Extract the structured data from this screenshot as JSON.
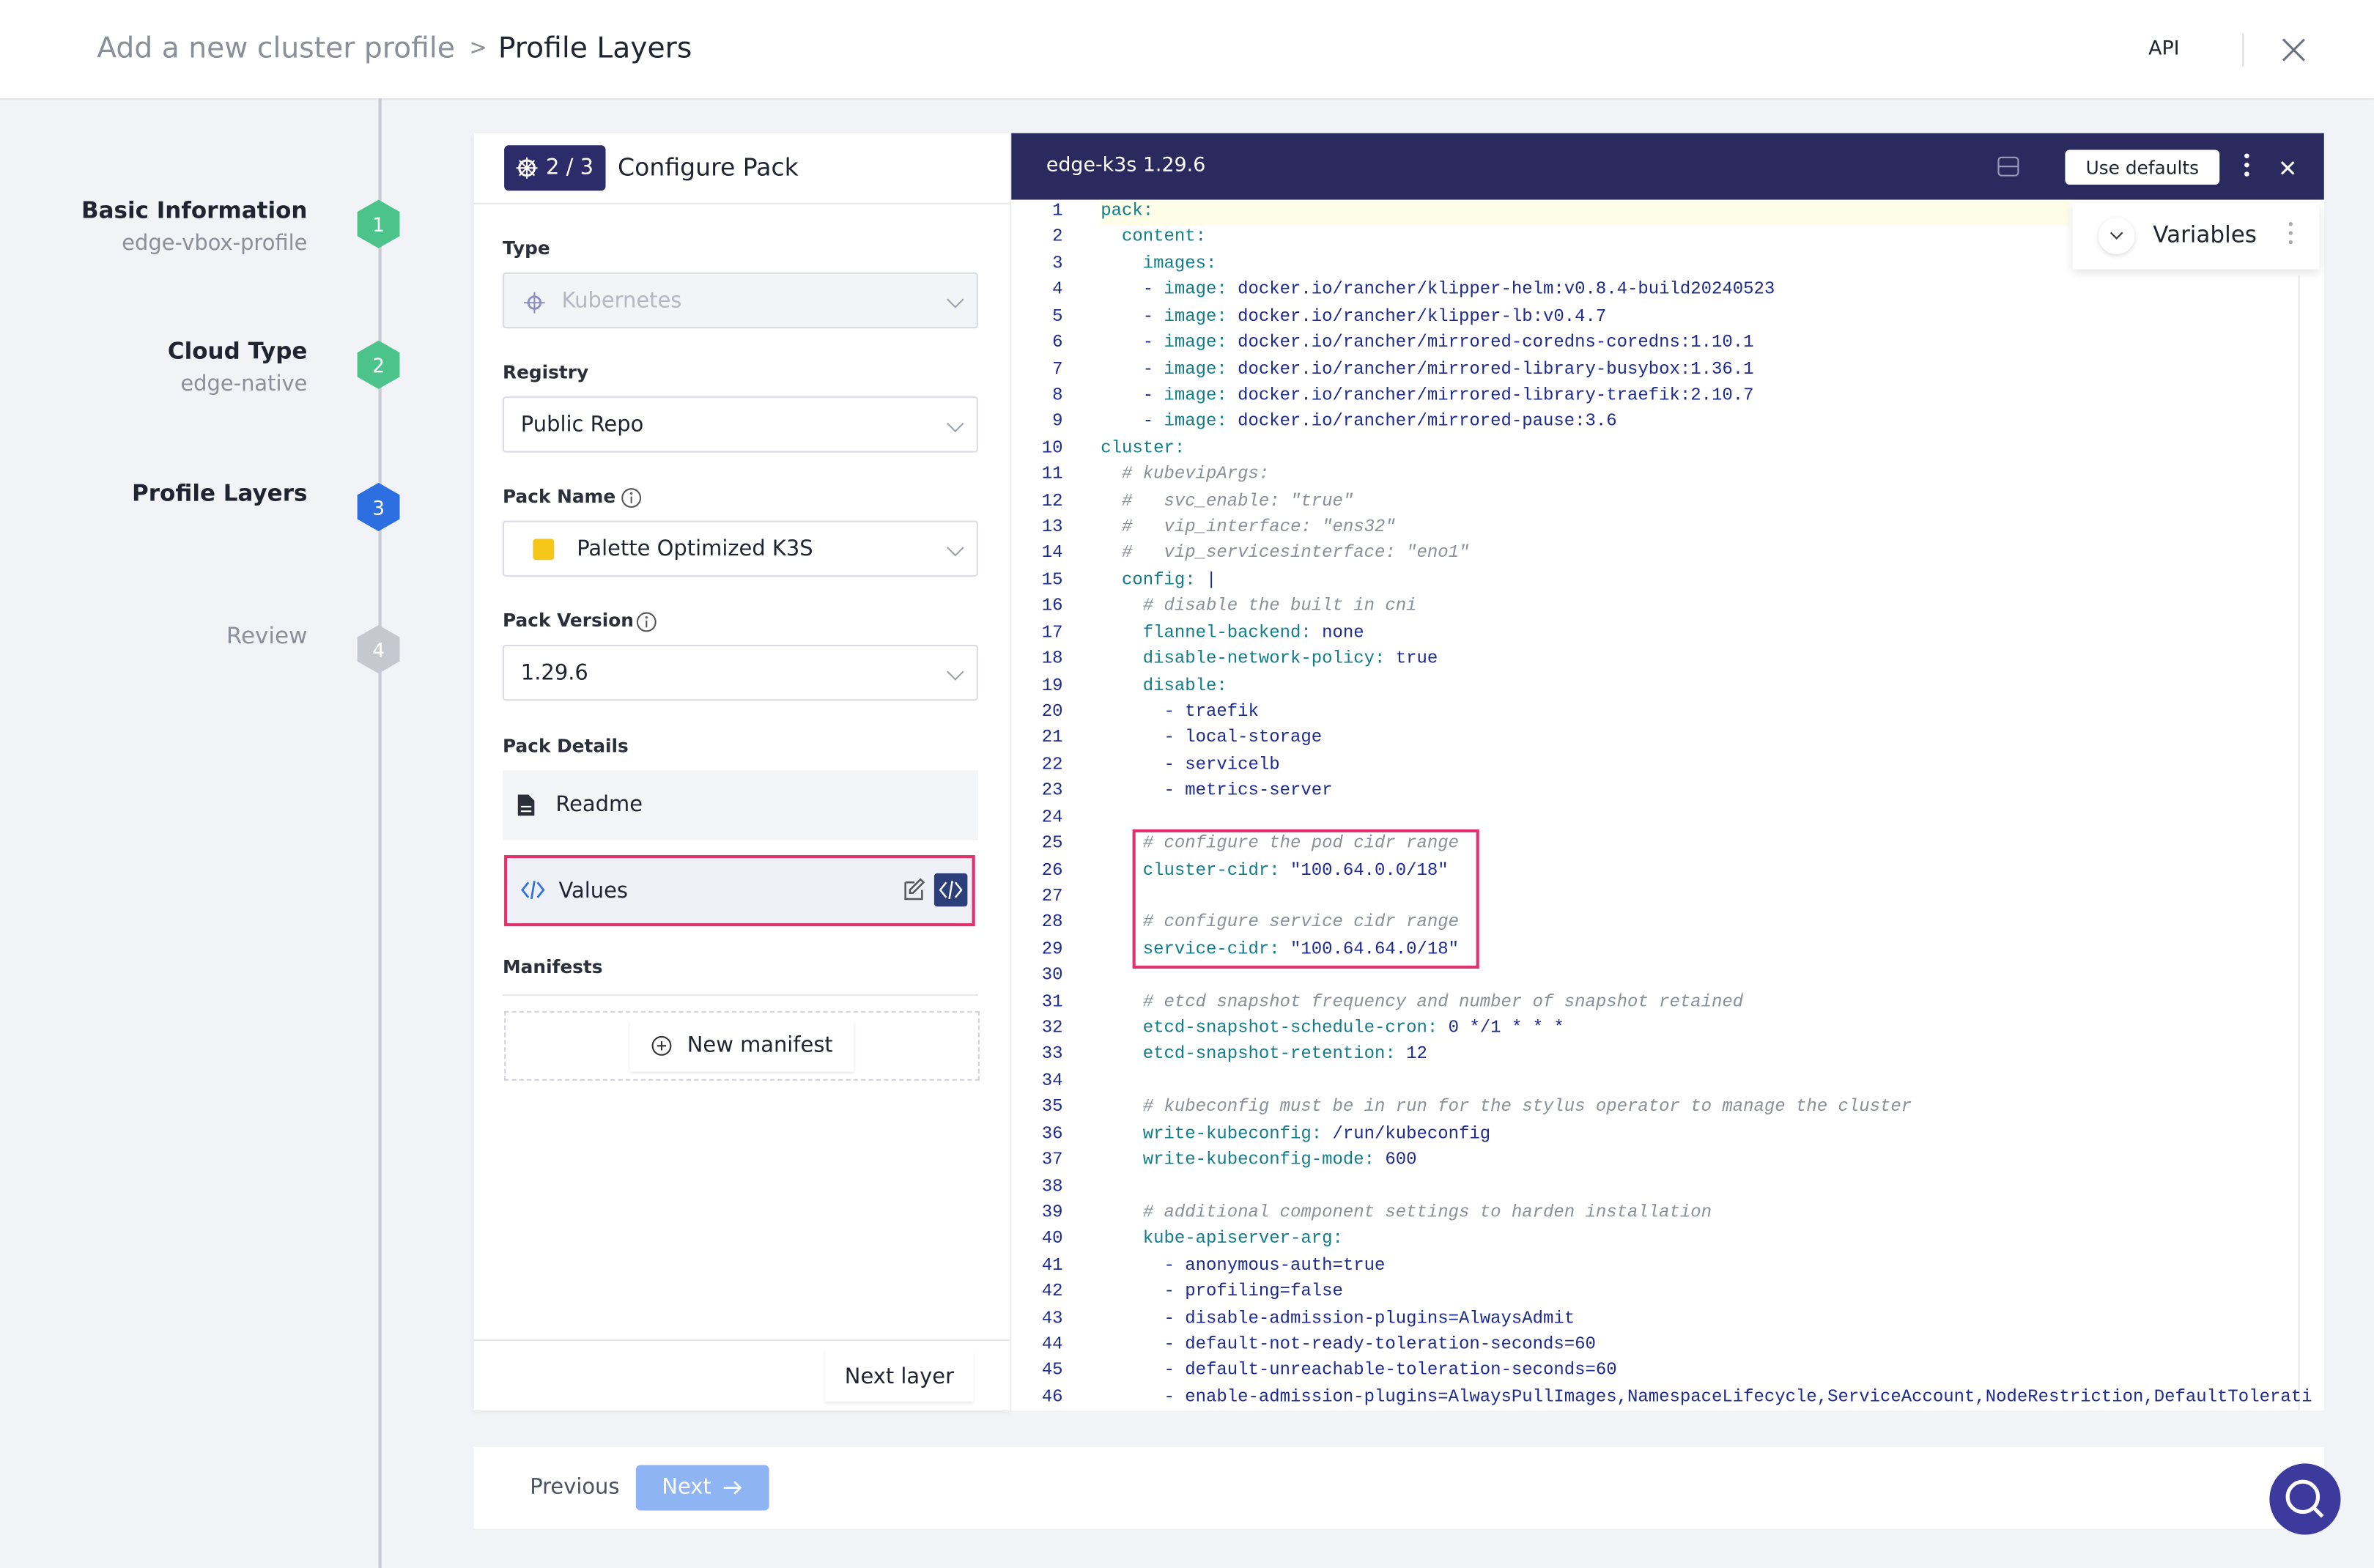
{
  "header": {
    "breadcrumb_parent": "Add a new cluster profile",
    "breadcrumb_separator": ">",
    "breadcrumb_current": "Profile Layers",
    "api": "API"
  },
  "steps": [
    {
      "title": "Basic Information",
      "subtitle": "edge-vbox-profile",
      "number": 1
    },
    {
      "title": "Cloud Type",
      "subtitle": "edge-native",
      "number": 2
    },
    {
      "title": "Profile Layers",
      "number": 3
    },
    {
      "title": "Review",
      "number": 4
    }
  ],
  "pack": {
    "step": "2 / 3",
    "title": "Configure Pack",
    "type_label": "Type",
    "type_value": "Kubernetes",
    "registry_label": "Registry",
    "registry_value": "Public Repo",
    "pack_name_label": "Pack Name",
    "pack_name_value": "Palette Optimized K3S",
    "pack_version_label": "Pack Version",
    "pack_version_value": "1.29.6",
    "pack_details_label": "Pack Details",
    "readme": "Readme",
    "values": "Values",
    "manifests_label": "Manifests",
    "new_manifest": "New manifest",
    "next_layer": "Next layer"
  },
  "editor": {
    "title": "edge-k3s 1.29.6",
    "use_defaults": "Use defaults",
    "variables": "Variables",
    "lines": [
      [
        1,
        "pack:"
      ],
      [
        2,
        "  content:"
      ],
      [
        3,
        "    images:"
      ],
      [
        4,
        "    - image: docker.io/rancher/klipper-helm:v0.8.4-build20240523"
      ],
      [
        5,
        "    - image: docker.io/rancher/klipper-lb:v0.4.7"
      ],
      [
        6,
        "    - image: docker.io/rancher/mirrored-coredns-coredns:1.10.1"
      ],
      [
        7,
        "    - image: docker.io/rancher/mirrored-library-busybox:1.36.1"
      ],
      [
        8,
        "    - image: docker.io/rancher/mirrored-library-traefik:2.10.7"
      ],
      [
        9,
        "    - image: docker.io/rancher/mirrored-pause:3.6"
      ],
      [
        10,
        "cluster:"
      ],
      [
        11,
        "  # kubevipArgs:"
      ],
      [
        12,
        "  #   svc_enable: \"true\""
      ],
      [
        13,
        "  #   vip_interface: \"ens32\""
      ],
      [
        14,
        "  #   vip_servicesinterface: \"eno1\""
      ],
      [
        15,
        "  config: |"
      ],
      [
        16,
        "    # disable the built in cni"
      ],
      [
        17,
        "    flannel-backend: none"
      ],
      [
        18,
        "    disable-network-policy: true"
      ],
      [
        19,
        "    disable:"
      ],
      [
        20,
        "      - traefik"
      ],
      [
        21,
        "      - local-storage"
      ],
      [
        22,
        "      - servicelb"
      ],
      [
        23,
        "      - metrics-server"
      ],
      [
        24,
        null
      ],
      [
        25,
        "    # configure the pod cidr range"
      ],
      [
        26,
        "    cluster-cidr: \"100.64.0.0/18\""
      ],
      [
        27,
        null
      ],
      [
        28,
        "    # configure service cidr range"
      ],
      [
        29,
        "    service-cidr: \"100.64.64.0/18\""
      ],
      [
        30,
        null
      ],
      [
        31,
        "    # etcd snapshot frequency and number of snapshot retained"
      ],
      [
        32,
        "    etcd-snapshot-schedule-cron: 0 */1 * * *"
      ],
      [
        33,
        "    etcd-snapshot-retention: 12"
      ],
      [
        34,
        null
      ],
      [
        35,
        "    # kubeconfig must be in run for the stylus operator to manage the cluster"
      ],
      [
        36,
        "    write-kubeconfig: /run/kubeconfig"
      ],
      [
        37,
        "    write-kubeconfig-mode: 600"
      ],
      [
        38,
        null
      ],
      [
        39,
        "    # additional component settings to harden installation"
      ],
      [
        40,
        "    kube-apiserver-arg:"
      ],
      [
        41,
        "      - anonymous-auth=true"
      ],
      [
        42,
        "      - profiling=false"
      ],
      [
        43,
        "      - disable-admission-plugins=AlwaysAdmit"
      ],
      [
        44,
        "      - default-not-ready-toleration-seconds=60"
      ],
      [
        45,
        "      - default-unreachable-toleration-seconds=60"
      ],
      [
        46,
        "      - enable-admission-plugins=AlwaysPullImages,NamespaceLifecycle,ServiceAccount,NodeRestriction,DefaultTolerati"
      ]
    ]
  },
  "footer": {
    "previous": "Previous",
    "next": "Next"
  }
}
